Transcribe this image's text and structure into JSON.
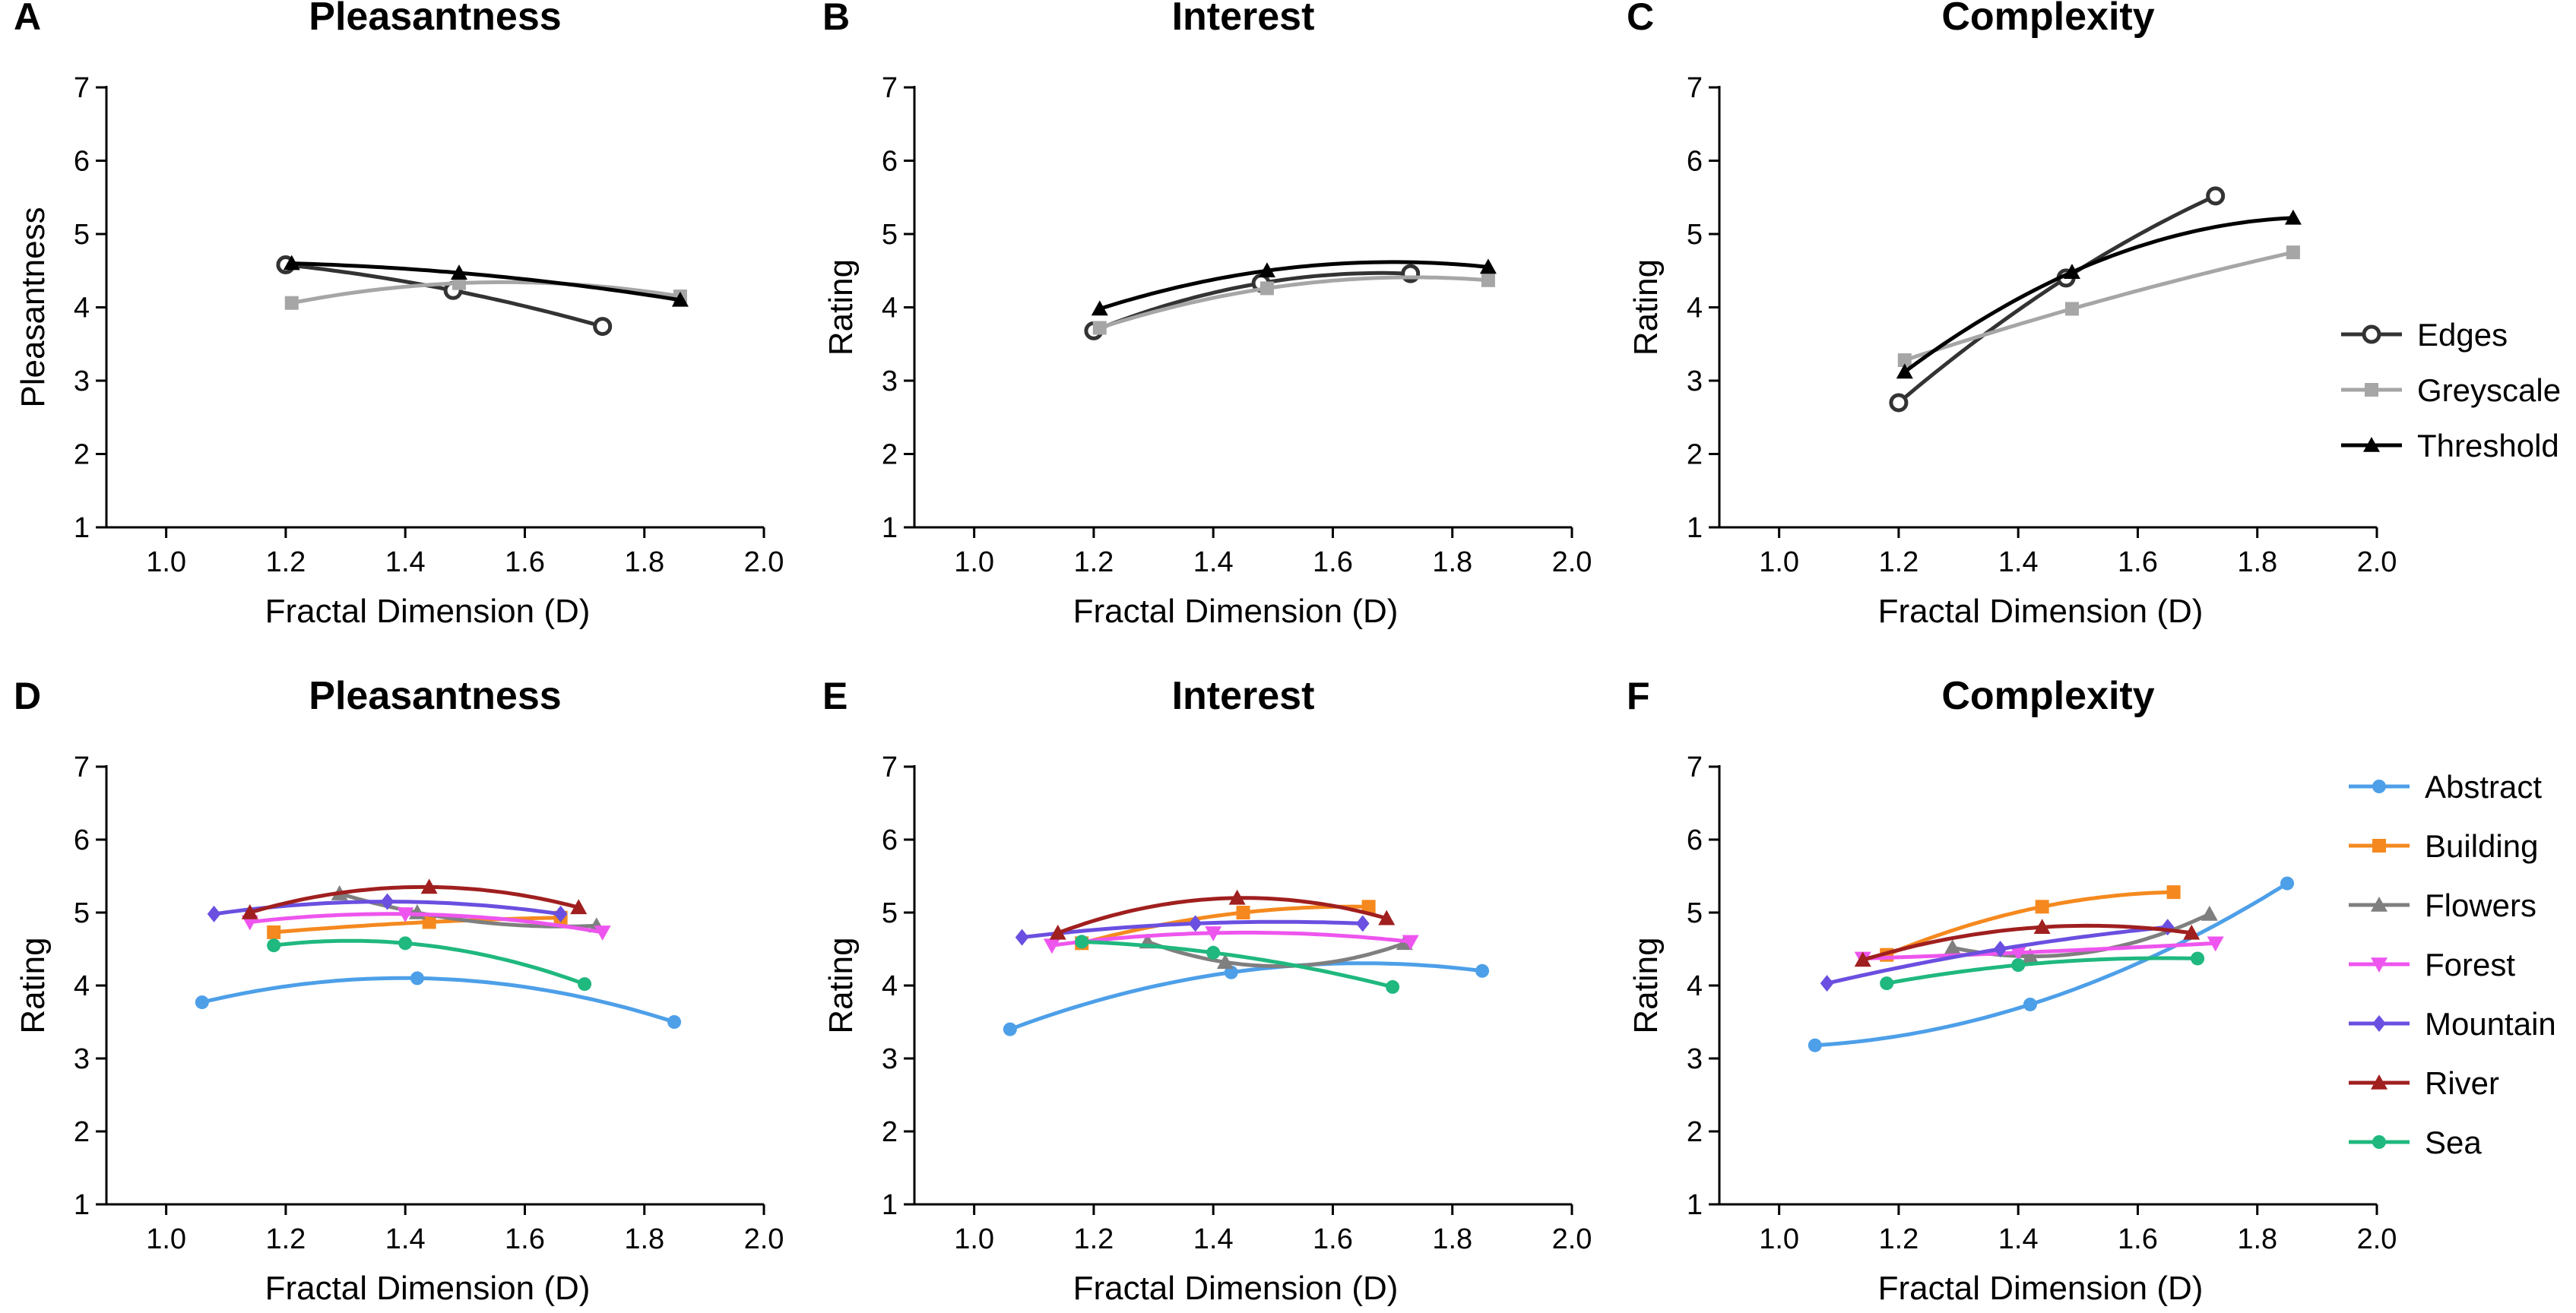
{
  "colors": {
    "Edges": "#333333",
    "Greyscale": "#a6a6a6",
    "Threshold": "#000000",
    "Abstract": "#4d9fe8",
    "Building": "#f5891f",
    "Flowers": "#7f7f7f",
    "Forest": "#ee55ee",
    "Mountain": "#6a4fe0",
    "River": "#a01f1f",
    "Sea": "#1fb87e"
  },
  "markers": {
    "Edges": "open-circle",
    "Greyscale": "square",
    "Threshold": "triangle",
    "Abstract": "circle",
    "Building": "square",
    "Flowers": "triangle",
    "Forest": "triangle-down",
    "Mountain": "diamond",
    "River": "triangle",
    "Sea": "circle"
  },
  "legends": {
    "top": [
      "Edges",
      "Greyscale",
      "Threshold"
    ],
    "bottom": [
      "Abstract",
      "Building",
      "Flowers",
      "Forest",
      "Mountain",
      "River",
      "Sea"
    ]
  },
  "chart_data": [
    {
      "panel": "A",
      "type": "line",
      "title": "Pleasantness",
      "xlabel": "Fractal Dimension (D)",
      "ylabel": "Pleasantness",
      "xlim": [
        0.9,
        2.0
      ],
      "ylim": [
        1,
        7
      ],
      "xticks": [
        "1.0",
        "1.2",
        "1.4",
        "1.6",
        "1.8",
        "2.0"
      ],
      "yticks": [
        "1",
        "2",
        "3",
        "4",
        "5",
        "6",
        "7"
      ],
      "series": [
        {
          "name": "Edges",
          "x": [
            1.2,
            1.48,
            1.73
          ],
          "y": [
            4.58,
            4.23,
            3.74
          ]
        },
        {
          "name": "Greyscale",
          "x": [
            1.21,
            1.49,
            1.86
          ],
          "y": [
            4.06,
            4.33,
            4.15
          ]
        },
        {
          "name": "Threshold",
          "x": [
            1.21,
            1.49,
            1.86
          ],
          "y": [
            4.6,
            4.47,
            4.1
          ]
        }
      ]
    },
    {
      "panel": "B",
      "type": "line",
      "title": "Interest",
      "xlabel": "Fractal Dimension (D)",
      "ylabel": "Rating",
      "xlim": [
        0.9,
        2.0
      ],
      "ylim": [
        1,
        7
      ],
      "xticks": [
        "1.0",
        "1.2",
        "1.4",
        "1.6",
        "1.8",
        "2.0"
      ],
      "yticks": [
        "1",
        "2",
        "3",
        "4",
        "5",
        "6",
        "7"
      ],
      "series": [
        {
          "name": "Edges",
          "x": [
            1.2,
            1.48,
            1.73
          ],
          "y": [
            3.68,
            4.33,
            4.46
          ]
        },
        {
          "name": "Greyscale",
          "x": [
            1.21,
            1.49,
            1.86
          ],
          "y": [
            3.72,
            4.26,
            4.37
          ]
        },
        {
          "name": "Threshold",
          "x": [
            1.21,
            1.49,
            1.86
          ],
          "y": [
            3.98,
            4.5,
            4.55
          ]
        }
      ]
    },
    {
      "panel": "C",
      "type": "line",
      "title": "Complexity",
      "xlabel": "Fractal Dimension (D)",
      "ylabel": "Rating",
      "xlim": [
        0.9,
        2.0
      ],
      "ylim": [
        1,
        7
      ],
      "xticks": [
        "1.0",
        "1.2",
        "1.4",
        "1.6",
        "1.8",
        "2.0"
      ],
      "yticks": [
        "1",
        "2",
        "3",
        "4",
        "5",
        "6",
        "7"
      ],
      "series": [
        {
          "name": "Edges",
          "x": [
            1.2,
            1.48,
            1.73
          ],
          "y": [
            2.7,
            4.4,
            5.52
          ]
        },
        {
          "name": "Greyscale",
          "x": [
            1.21,
            1.49,
            1.86
          ],
          "y": [
            3.28,
            3.98,
            4.75
          ]
        },
        {
          "name": "Threshold",
          "x": [
            1.21,
            1.49,
            1.86
          ],
          "y": [
            3.12,
            4.48,
            5.22
          ]
        }
      ]
    },
    {
      "panel": "D",
      "type": "line",
      "title": "Pleasantness",
      "xlabel": "Fractal Dimension (D)",
      "ylabel": "Rating",
      "xlim": [
        0.9,
        2.0
      ],
      "ylim": [
        1,
        7
      ],
      "xticks": [
        "1.0",
        "1.2",
        "1.4",
        "1.6",
        "1.8",
        "2.0"
      ],
      "yticks": [
        "1",
        "2",
        "3",
        "4",
        "5",
        "6",
        "7"
      ],
      "series": [
        {
          "name": "Abstract",
          "x": [
            1.06,
            1.42,
            1.85
          ],
          "y": [
            3.77,
            4.1,
            3.5
          ]
        },
        {
          "name": "Building",
          "x": [
            1.18,
            1.44,
            1.66
          ],
          "y": [
            4.73,
            4.87,
            4.93
          ]
        },
        {
          "name": "Flowers",
          "x": [
            1.29,
            1.42,
            1.72
          ],
          "y": [
            5.26,
            5.0,
            4.82
          ]
        },
        {
          "name": "Forest",
          "x": [
            1.14,
            1.4,
            1.73
          ],
          "y": [
            4.87,
            4.98,
            4.73
          ]
        },
        {
          "name": "Mountain",
          "x": [
            1.08,
            1.37,
            1.66
          ],
          "y": [
            4.98,
            5.15,
            4.98
          ]
        },
        {
          "name": "River",
          "x": [
            1.14,
            1.44,
            1.69
          ],
          "y": [
            5.0,
            5.35,
            5.07
          ]
        },
        {
          "name": "Sea",
          "x": [
            1.18,
            1.4,
            1.7
          ],
          "y": [
            4.55,
            4.58,
            4.02
          ]
        }
      ]
    },
    {
      "panel": "E",
      "type": "line",
      "title": "Interest",
      "xlabel": "Fractal Dimension (D)",
      "ylabel": "Rating",
      "xlim": [
        0.9,
        2.0
      ],
      "ylim": [
        1,
        7
      ],
      "xticks": [
        "1.0",
        "1.2",
        "1.4",
        "1.6",
        "1.8",
        "2.0"
      ],
      "yticks": [
        "1",
        "2",
        "3",
        "4",
        "5",
        "6",
        "7"
      ],
      "series": [
        {
          "name": "Abstract",
          "x": [
            1.06,
            1.43,
            1.85
          ],
          "y": [
            3.4,
            4.18,
            4.2
          ]
        },
        {
          "name": "Building",
          "x": [
            1.18,
            1.45,
            1.66
          ],
          "y": [
            4.58,
            5.0,
            5.08
          ]
        },
        {
          "name": "Flowers",
          "x": [
            1.29,
            1.42,
            1.72
          ],
          "y": [
            4.6,
            4.32,
            4.58
          ]
        },
        {
          "name": "Forest",
          "x": [
            1.13,
            1.4,
            1.73
          ],
          "y": [
            4.55,
            4.72,
            4.6
          ]
        },
        {
          "name": "Mountain",
          "x": [
            1.08,
            1.37,
            1.65
          ],
          "y": [
            4.66,
            4.85,
            4.85
          ]
        },
        {
          "name": "River",
          "x": [
            1.14,
            1.44,
            1.69
          ],
          "y": [
            4.72,
            5.2,
            4.92
          ]
        },
        {
          "name": "Sea",
          "x": [
            1.18,
            1.4,
            1.7
          ],
          "y": [
            4.6,
            4.45,
            3.98
          ]
        }
      ]
    },
    {
      "panel": "F",
      "type": "line",
      "title": "Complexity",
      "xlabel": "Fractal Dimension (D)",
      "ylabel": "Rating",
      "xlim": [
        0.9,
        2.0
      ],
      "ylim": [
        1,
        7
      ],
      "xticks": [
        "1.0",
        "1.2",
        "1.4",
        "1.6",
        "1.8",
        "2.0"
      ],
      "yticks": [
        "1",
        "2",
        "3",
        "4",
        "5",
        "6",
        "7"
      ],
      "series": [
        {
          "name": "Abstract",
          "x": [
            1.06,
            1.42,
            1.85
          ],
          "y": [
            3.18,
            3.74,
            5.4
          ]
        },
        {
          "name": "Building",
          "x": [
            1.18,
            1.44,
            1.66
          ],
          "y": [
            4.42,
            5.08,
            5.28
          ]
        },
        {
          "name": "Flowers",
          "x": [
            1.29,
            1.42,
            1.72
          ],
          "y": [
            4.52,
            4.4,
            4.98
          ]
        },
        {
          "name": "Forest",
          "x": [
            1.14,
            1.4,
            1.73
          ],
          "y": [
            4.37,
            4.45,
            4.58
          ]
        },
        {
          "name": "Mountain",
          "x": [
            1.08,
            1.37,
            1.65
          ],
          "y": [
            4.03,
            4.5,
            4.8
          ]
        },
        {
          "name": "River",
          "x": [
            1.14,
            1.44,
            1.69
          ],
          "y": [
            4.35,
            4.8,
            4.72
          ]
        },
        {
          "name": "Sea",
          "x": [
            1.18,
            1.4,
            1.7
          ],
          "y": [
            4.03,
            4.28,
            4.37
          ]
        }
      ]
    }
  ]
}
